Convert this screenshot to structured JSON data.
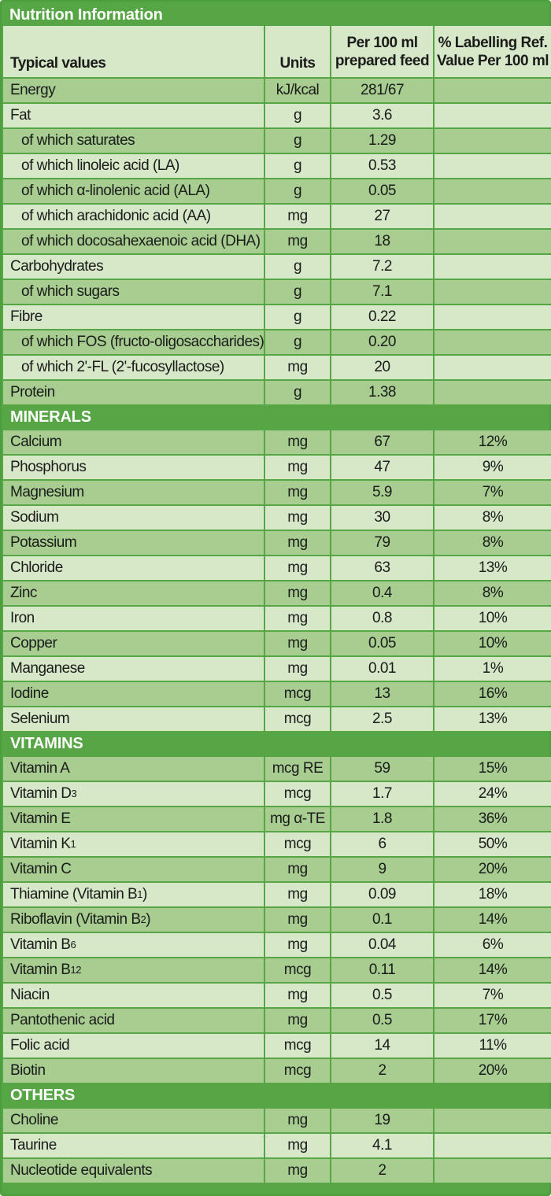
{
  "title": "Nutrition Information",
  "header": {
    "name": "Typical values",
    "unit": "Units",
    "val": "Per 100 ml prepared feed",
    "ref": "% Labelling Ref. Value Per 100 ml"
  },
  "rows": [
    {
      "name": "Energy",
      "unit": "kJ/kcal",
      "val": "281/67",
      "ref": ""
    },
    {
      "name": "Fat",
      "unit": "g",
      "val": "3.6",
      "ref": ""
    },
    {
      "name": "of which saturates",
      "indent": true,
      "unit": "g",
      "val": "1.29",
      "ref": ""
    },
    {
      "name": "of which linoleic acid (LA)",
      "indent": true,
      "unit": "g",
      "val": "0.53",
      "ref": ""
    },
    {
      "name": "of which α-linolenic acid (ALA)",
      "indent": true,
      "unit": "g",
      "val": "0.05",
      "ref": ""
    },
    {
      "name": "of which arachidonic acid (AA)",
      "indent": true,
      "unit": "mg",
      "val": "27",
      "ref": ""
    },
    {
      "name": "of which docosahexaenoic acid (DHA)",
      "indent": true,
      "unit": "mg",
      "val": "18",
      "ref": ""
    },
    {
      "name": "Carbohydrates",
      "unit": "g",
      "val": "7.2",
      "ref": ""
    },
    {
      "name": "of which sugars",
      "indent": true,
      "unit": "g",
      "val": "7.1",
      "ref": ""
    },
    {
      "name": "Fibre",
      "unit": "g",
      "val": "0.22",
      "ref": ""
    },
    {
      "name": "of which FOS (fructo-oligosaccharides)",
      "indent": true,
      "unit": "g",
      "val": "0.20",
      "ref": ""
    },
    {
      "name": "of which 2'-FL (2'-fucosyllactose)",
      "indent": true,
      "unit": "mg",
      "val": "20",
      "ref": ""
    },
    {
      "name": "Protein",
      "unit": "g",
      "val": "1.38",
      "ref": ""
    },
    {
      "section": "MINERALS"
    },
    {
      "name": "Calcium",
      "unit": "mg",
      "val": "67",
      "ref": "12%"
    },
    {
      "name": "Phosphorus",
      "unit": "mg",
      "val": "47",
      "ref": "9%"
    },
    {
      "name": "Magnesium",
      "unit": "mg",
      "val": "5.9",
      "ref": "7%"
    },
    {
      "name": "Sodium",
      "unit": "mg",
      "val": "30",
      "ref": "8%"
    },
    {
      "name": "Potassium",
      "unit": "mg",
      "val": "79",
      "ref": "8%"
    },
    {
      "name": "Chloride",
      "unit": "mg",
      "val": "63",
      "ref": "13%"
    },
    {
      "name": "Zinc",
      "unit": "mg",
      "val": "0.4",
      "ref": "8%"
    },
    {
      "name": "Iron",
      "unit": "mg",
      "val": "0.8",
      "ref": "10%"
    },
    {
      "name": "Copper",
      "unit": "mg",
      "val": "0.05",
      "ref": "10%"
    },
    {
      "name": "Manganese",
      "unit": "mg",
      "val": "0.01",
      "ref": "1%"
    },
    {
      "name": "Iodine",
      "unit": "mcg",
      "val": "13",
      "ref": "16%"
    },
    {
      "name": "Selenium",
      "unit": "mcg",
      "val": "2.5",
      "ref": "13%"
    },
    {
      "section": "VITAMINS"
    },
    {
      "name": "Vitamin A",
      "unit": "mcg RE",
      "val": "59",
      "ref": "15%"
    },
    {
      "name": "Vitamin D",
      "sub": "3",
      "unit": "mcg",
      "val": "1.7",
      "ref": "24%"
    },
    {
      "name": "Vitamin E",
      "unit": "mg α-TE",
      "val": "1.8",
      "ref": "36%"
    },
    {
      "name": "Vitamin K",
      "sub": "1",
      "unit": "mcg",
      "val": "6",
      "ref": "50%"
    },
    {
      "name": "Vitamin C",
      "unit": "mg",
      "val": "9",
      "ref": "20%"
    },
    {
      "name": "Thiamine (Vitamin B",
      "sub": "1",
      "tail": ")",
      "unit": "mg",
      "val": "0.09",
      "ref": "18%"
    },
    {
      "name": "Riboflavin (Vitamin B",
      "sub": "2",
      "tail": ")",
      "unit": "mg",
      "val": "0.1",
      "ref": "14%"
    },
    {
      "name": "Vitamin B",
      "sub": "6",
      "unit": "mg",
      "val": "0.04",
      "ref": "6%"
    },
    {
      "name": "Vitamin B",
      "sub": "12",
      "unit": "mcg",
      "val": "0.11",
      "ref": "14%"
    },
    {
      "name": "Niacin",
      "unit": "mg",
      "val": "0.5",
      "ref": "7%"
    },
    {
      "name": "Pantothenic acid",
      "unit": "mg",
      "val": "0.5",
      "ref": "17%"
    },
    {
      "name": "Folic acid",
      "unit": "mcg",
      "val": "14",
      "ref": "11%"
    },
    {
      "name": "Biotin",
      "unit": "mcg",
      "val": "2",
      "ref": "20%"
    },
    {
      "section": "OTHERS"
    },
    {
      "name": "Choline",
      "unit": "mg",
      "val": "19",
      "ref": ""
    },
    {
      "name": "Taurine",
      "unit": "mg",
      "val": "4.1",
      "ref": ""
    },
    {
      "name": "Nucleotide equivalents",
      "unit": "mg",
      "val": "2",
      "ref": ""
    }
  ]
}
